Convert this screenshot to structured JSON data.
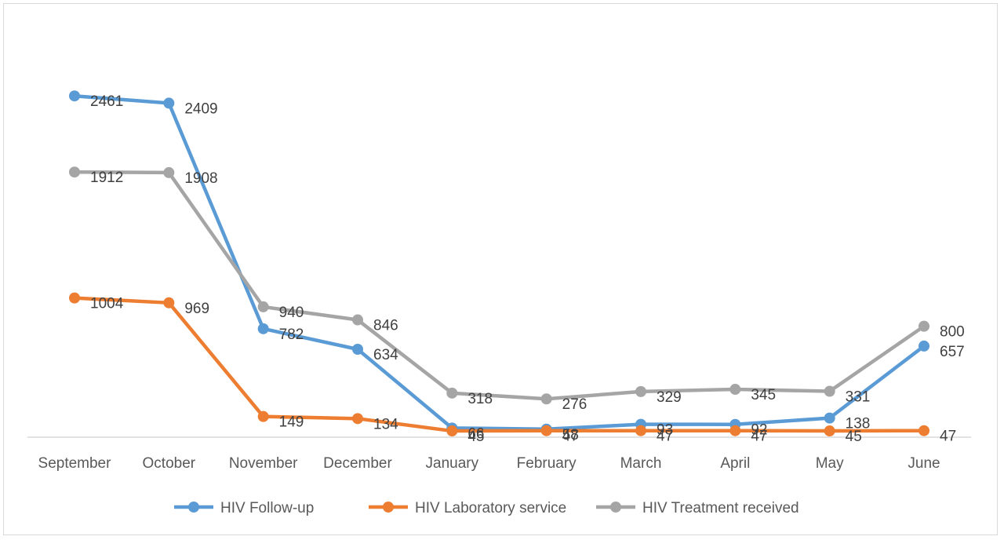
{
  "chart_data": {
    "type": "line",
    "categories": [
      "September",
      "October",
      "November",
      "December",
      "January",
      "February",
      "March",
      "April",
      "May",
      "June"
    ],
    "series": [
      {
        "name": "HIV Follow-up",
        "color": "#5b9bd5",
        "values": [
          2461,
          2409,
          782,
          634,
          66,
          58,
          93,
          92,
          138,
          657
        ]
      },
      {
        "name": "HIV Laboratory service",
        "color": "#ed7d31",
        "values": [
          1004,
          969,
          149,
          134,
          45,
          47,
          47,
          47,
          45,
          47
        ]
      },
      {
        "name": "HIV Treatment received",
        "color": "#a5a5a5",
        "values": [
          1912,
          1908,
          940,
          846,
          318,
          276,
          329,
          345,
          331,
          800
        ]
      }
    ],
    "ylim": [
      0,
      2700
    ],
    "grid": false,
    "legend_position": "bottom",
    "data_labels": true
  }
}
